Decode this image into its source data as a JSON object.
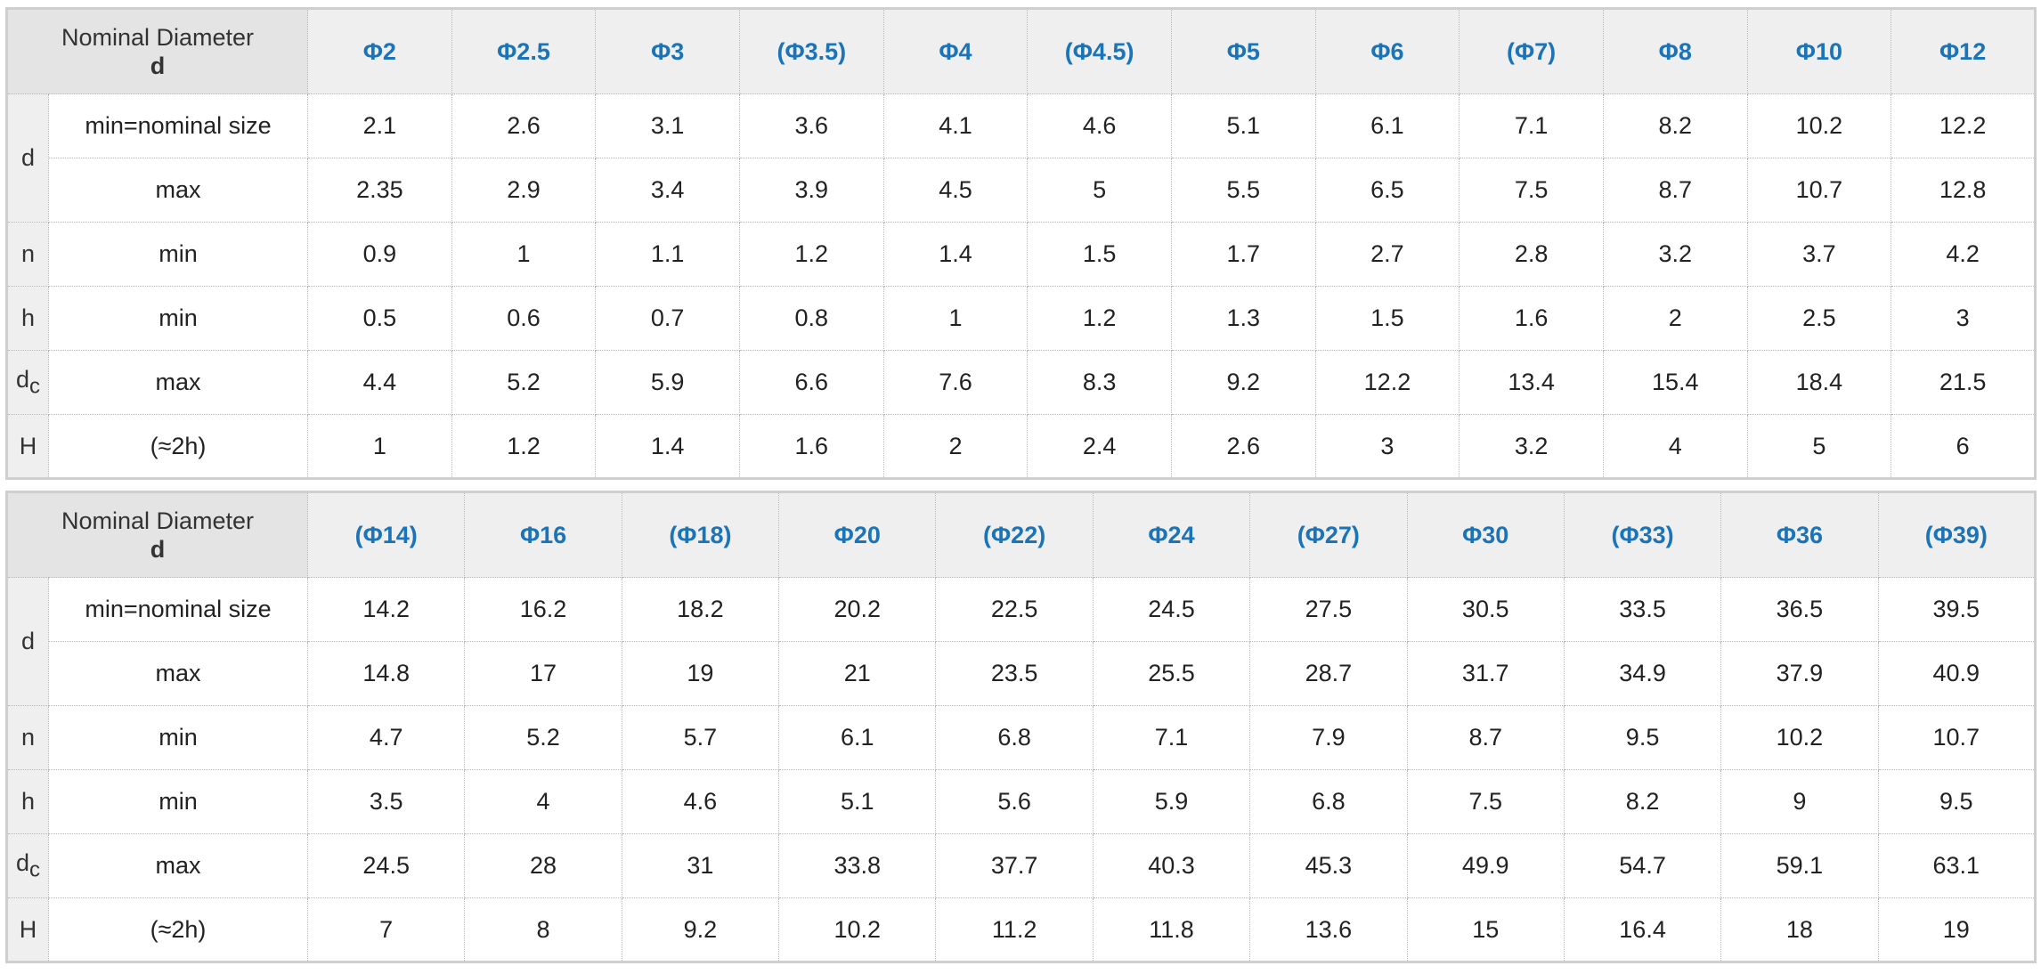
{
  "tables": [
    {
      "corner": {
        "line1": "Nominal Diameter",
        "line2": "d"
      },
      "sizes": [
        "Φ2",
        "Φ2.5",
        "Φ3",
        "(Φ3.5)",
        "Φ4",
        "(Φ4.5)",
        "Φ5",
        "Φ6",
        "(Φ7)",
        "Φ8",
        "Φ10",
        "Φ12"
      ],
      "rows": [
        {
          "symbol": "d",
          "condition": "min=nominal size",
          "values": [
            "2.1",
            "2.6",
            "3.1",
            "3.6",
            "4.1",
            "4.6",
            "5.1",
            "6.1",
            "7.1",
            "8.2",
            "10.2",
            "12.2"
          ]
        },
        {
          "symbol": "d",
          "condition": "max",
          "values": [
            "2.35",
            "2.9",
            "3.4",
            "3.9",
            "4.5",
            "5",
            "5.5",
            "6.5",
            "7.5",
            "8.7",
            "10.7",
            "12.8"
          ]
        },
        {
          "symbol": "n",
          "condition": "min",
          "values": [
            "0.9",
            "1",
            "1.1",
            "1.2",
            "1.4",
            "1.5",
            "1.7",
            "2.7",
            "2.8",
            "3.2",
            "3.7",
            "4.2"
          ]
        },
        {
          "symbol": "h",
          "condition": "min",
          "values": [
            "0.5",
            "0.6",
            "0.7",
            "0.8",
            "1",
            "1.2",
            "1.3",
            "1.5",
            "1.6",
            "2",
            "2.5",
            "3"
          ]
        },
        {
          "symbol": "d",
          "symbol_sub": "c",
          "condition": "max",
          "values": [
            "4.4",
            "5.2",
            "5.9",
            "6.6",
            "7.6",
            "8.3",
            "9.2",
            "12.2",
            "13.4",
            "15.4",
            "18.4",
            "21.5"
          ]
        },
        {
          "symbol": "H",
          "condition": "(≈2h)",
          "values": [
            "1",
            "1.2",
            "1.4",
            "1.6",
            "2",
            "2.4",
            "2.6",
            "3",
            "3.2",
            "4",
            "5",
            "6"
          ]
        }
      ]
    },
    {
      "corner": {
        "line1": "Nominal Diameter",
        "line2": "d"
      },
      "sizes": [
        "(Φ14)",
        "Φ16",
        "(Φ18)",
        "Φ20",
        "(Φ22)",
        "Φ24",
        "(Φ27)",
        "Φ30",
        "(Φ33)",
        "Φ36",
        "(Φ39)"
      ],
      "rows": [
        {
          "symbol": "d",
          "condition": "min=nominal size",
          "values": [
            "14.2",
            "16.2",
            "18.2",
            "20.2",
            "22.5",
            "24.5",
            "27.5",
            "30.5",
            "33.5",
            "36.5",
            "39.5"
          ]
        },
        {
          "symbol": "d",
          "condition": "max",
          "values": [
            "14.8",
            "17",
            "19",
            "21",
            "23.5",
            "25.5",
            "28.7",
            "31.7",
            "34.9",
            "37.9",
            "40.9"
          ]
        },
        {
          "symbol": "n",
          "condition": "min",
          "values": [
            "4.7",
            "5.2",
            "5.7",
            "6.1",
            "6.8",
            "7.1",
            "7.9",
            "8.7",
            "9.5",
            "10.2",
            "10.7"
          ]
        },
        {
          "symbol": "h",
          "condition": "min",
          "values": [
            "3.5",
            "4",
            "4.6",
            "5.1",
            "5.6",
            "5.9",
            "6.8",
            "7.5",
            "8.2",
            "9",
            "9.5"
          ]
        },
        {
          "symbol": "d",
          "symbol_sub": "c",
          "condition": "max",
          "values": [
            "24.5",
            "28",
            "31",
            "33.8",
            "37.7",
            "40.3",
            "45.3",
            "49.9",
            "54.7",
            "59.1",
            "63.1"
          ]
        },
        {
          "symbol": "H",
          "condition": "(≈2h)",
          "values": [
            "7",
            "8",
            "9.2",
            "10.2",
            "11.2",
            "11.8",
            "13.6",
            "15",
            "16.4",
            "18",
            "19"
          ]
        }
      ]
    }
  ],
  "colors": {
    "size_header": "#1b73b8",
    "header_bg": "#efefef",
    "corner_bg": "#e4e4e4",
    "border": "#b9b9b9"
  }
}
